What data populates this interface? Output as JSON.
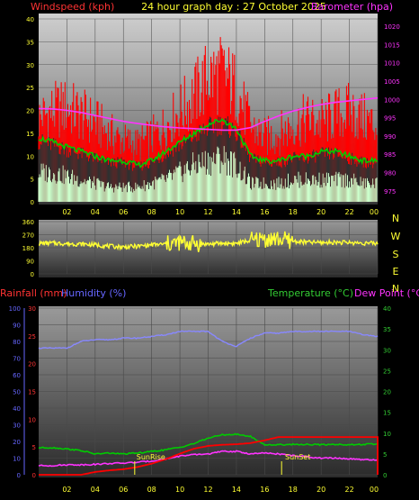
{
  "header": {
    "title": "24 hour graph day : 27 October 2025"
  },
  "colors": {
    "wind": "#ff0000",
    "gust_dark": "#303030",
    "avg_speed": "#00cc00",
    "wind_light": "#ccffcc",
    "barometer": "#ff33ff",
    "direction": "#ffff33",
    "rainfall": "#ff0000",
    "humidity": "#8888ff",
    "temperature": "#00cc00",
    "dew_point": "#ff33ff",
    "axis_red": "#ff3333",
    "axis_yellow": "#ffff33",
    "axis_green": "#33cc33",
    "axis_blue": "#6666ff",
    "tick_text": "#ffff33"
  },
  "x_ticks": [
    "02",
    "04",
    "06",
    "08",
    "10",
    "12",
    "14",
    "16",
    "18",
    "20",
    "22",
    "00"
  ],
  "chart_data": [
    {
      "type": "line",
      "title": "24 hour graph day : 27 October 2025",
      "left_axis_label": "Windspeed (kph)",
      "right_axis_label": "Barometer (hpa)",
      "left_ticks": [
        "40",
        "35",
        "30",
        "25",
        "20",
        "15",
        "10",
        "5",
        "0"
      ],
      "right_ticks": [
        "1020",
        "1015",
        "1010",
        "1005",
        "1000",
        "995",
        "990",
        "985",
        "980",
        "975"
      ],
      "ylim_left": [
        0,
        40
      ],
      "ylim_right": [
        972,
        1022
      ],
      "x": [
        0,
        1,
        2,
        3,
        4,
        5,
        6,
        7,
        8,
        9,
        10,
        11,
        12,
        13,
        14,
        15,
        16,
        17,
        18,
        19,
        20,
        21,
        22,
        23,
        24
      ],
      "series": [
        {
          "key": "gust",
          "values": [
            22,
            24,
            25,
            23,
            21,
            18,
            16,
            15,
            17,
            20,
            24,
            28,
            33,
            34,
            30,
            20,
            17,
            18,
            20,
            22,
            21,
            23,
            24,
            22,
            20
          ]
        },
        {
          "key": "avg",
          "values": [
            14,
            13,
            12,
            11,
            10,
            9,
            9,
            8,
            9,
            11,
            13,
            15,
            17,
            18,
            16,
            10,
            9,
            9,
            10,
            10,
            11,
            11,
            10,
            9,
            9
          ]
        },
        {
          "key": "lull",
          "values": [
            8,
            8,
            7,
            6,
            5,
            4,
            4,
            4,
            5,
            6,
            8,
            10,
            11,
            12,
            10,
            5,
            5,
            5,
            6,
            6,
            6,
            6,
            6,
            5,
            5
          ]
        },
        {
          "key": "barometer",
          "values": [
            997.5,
            997.4,
            997,
            996.4,
            995.6,
            994.8,
            994,
            993.4,
            992.9,
            992.5,
            992.2,
            992,
            991.8,
            991.6,
            991.6,
            992.3,
            994,
            995.5,
            996.8,
            997.8,
            998.6,
            999.2,
            999.6,
            1000,
            1000.4
          ]
        }
      ]
    },
    {
      "type": "line",
      "left_ticks": [
        "360",
        "270",
        "180",
        "90",
        "0"
      ],
      "right_ticks": [
        "N",
        "W",
        "S",
        "E",
        "N"
      ],
      "ylim": [
        0,
        360
      ],
      "x": [
        0,
        1,
        2,
        3,
        4,
        5,
        6,
        7,
        8,
        9,
        10,
        11,
        12,
        13,
        14,
        15,
        16,
        17,
        18,
        19,
        20,
        21,
        22,
        23,
        24
      ],
      "series": [
        {
          "key": "direction",
          "values": [
            210,
            212,
            208,
            205,
            200,
            190,
            185,
            190,
            200,
            205,
            215,
            210,
            205,
            210,
            210,
            230,
            240,
            238,
            225,
            218,
            215,
            218,
            215,
            212,
            210
          ]
        }
      ]
    },
    {
      "type": "line",
      "left_axis_label": "Rainfall (mm)",
      "left_axis_label2": "Humidity (%)",
      "right_axis_label": "Temperature (°C)",
      "right_axis_label2": "Dew Point (°C)",
      "humidity_ticks": [
        "100",
        "90",
        "80",
        "70",
        "60",
        "50",
        "40",
        "30",
        "20",
        "10",
        "0"
      ],
      "rain_ticks": [
        "30",
        "25",
        "20",
        "15",
        "10",
        "5",
        "0"
      ],
      "temp_ticks": [
        "40",
        "35",
        "30",
        "25",
        "20",
        "15",
        "10",
        "5",
        "0"
      ],
      "annotations": [
        {
          "label": "SunRise",
          "x": 6.8
        },
        {
          "label": "SunSet",
          "x": 17.2
        }
      ],
      "x": [
        0,
        1,
        2,
        3,
        4,
        5,
        6,
        7,
        8,
        9,
        10,
        11,
        12,
        13,
        14,
        15,
        16,
        17,
        18,
        19,
        20,
        21,
        22,
        23,
        24
      ],
      "series": [
        {
          "key": "humidity",
          "values": [
            76,
            76,
            76,
            80,
            81,
            81,
            82,
            82,
            83,
            84,
            86,
            86,
            86,
            80,
            77,
            82,
            85,
            85,
            86,
            86,
            86,
            86,
            86,
            84,
            83
          ]
        },
        {
          "key": "rainfall",
          "values": [
            0,
            0,
            0,
            0,
            0.5,
            0.8,
            1.0,
            1.4,
            2.0,
            2.8,
            3.8,
            4.7,
            5.2,
            5.4,
            5.5,
            5.7,
            6.2,
            6.8,
            6.8,
            6.8,
            6.8,
            6.8,
            6.8,
            6.8,
            6.8
          ]
        },
        {
          "key": "temperature",
          "values": [
            6.5,
            6.5,
            6.2,
            5.8,
            5,
            5.2,
            5,
            5.2,
            5.6,
            6,
            6.6,
            7.5,
            8.8,
            9.6,
            9.7,
            9.2,
            7.2,
            7.2,
            7.3,
            7.3,
            7.2,
            7.3,
            7.2,
            7.3,
            7.4
          ]
        },
        {
          "key": "dewpoint",
          "values": [
            2.2,
            2.2,
            2.4,
            2.4,
            2.5,
            2.7,
            2.8,
            3.0,
            3.3,
            3.8,
            4.5,
            4.8,
            5.0,
            5.6,
            5.6,
            5.0,
            5.2,
            5.0,
            4.6,
            4.3,
            4.0,
            4.0,
            3.8,
            3.6,
            3.5
          ]
        }
      ]
    }
  ]
}
